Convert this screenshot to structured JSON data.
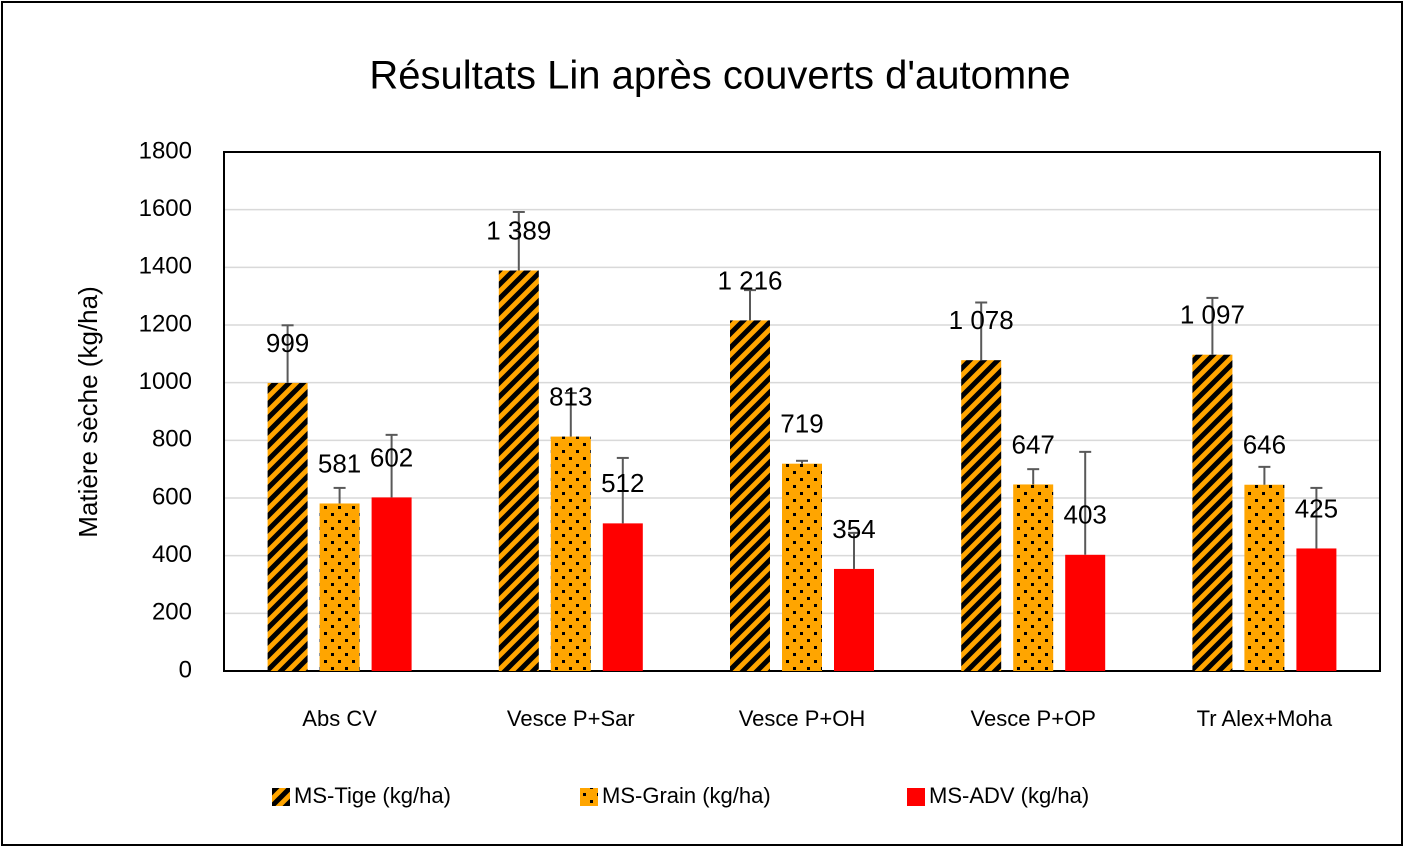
{
  "chart_data": {
    "type": "bar",
    "title": "Résultats Lin après couverts d'automne",
    "y_label": "Matière sèche (kg/ha)",
    "categories": [
      "Abs CV",
      "Vesce P+Sar",
      "Vesce P+OH",
      "Vesce P+OP",
      "Tr Alex+Moha"
    ],
    "series": [
      {
        "name": "MS-Tige (kg/ha)",
        "color": "#ffa500",
        "pattern": "stripes",
        "values": [
          999,
          1389,
          1216,
          1078,
          1097
        ],
        "value_labels": [
          "999",
          "1 389",
          "1 216",
          "1 078",
          "1 097"
        ],
        "errors": [
          200,
          203,
          105,
          200,
          197
        ]
      },
      {
        "name": "MS-Grain (kg/ha)",
        "color": "#ffa500",
        "pattern": "dots",
        "values": [
          581,
          813,
          719,
          647,
          646
        ],
        "errors": [
          54,
          151,
          10,
          53,
          62
        ]
      },
      {
        "name": "MS-ADV (kg/ha)",
        "color": "#ff0000",
        "pattern": "solid",
        "values": [
          602,
          512,
          354,
          403,
          425
        ],
        "errors": [
          217,
          227,
          125,
          357,
          210
        ]
      }
    ],
    "ylim": [
      0,
      1800
    ],
    "yticks": [
      0,
      200,
      400,
      600,
      800,
      1000,
      1200,
      1400,
      1600,
      1800
    ],
    "grid": true,
    "legend": "bottom"
  }
}
